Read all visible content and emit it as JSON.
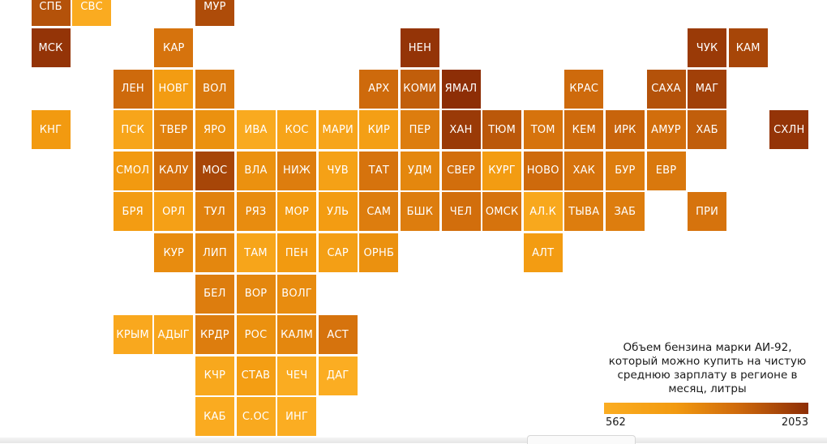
{
  "map": {
    "regions": [
      {
        "label": "СПБ",
        "value": 1750
      },
      {
        "label": "СВС",
        "value": 620
      },
      {
        "label": "МУР",
        "value": 1800
      },
      {
        "label": "МСК",
        "value": 2000
      },
      {
        "label": "КАР",
        "value": 1450
      },
      {
        "label": "НЕН",
        "value": 2000
      },
      {
        "label": "ЧУК",
        "value": 1950
      },
      {
        "label": "КАМ",
        "value": 1850
      },
      {
        "label": "ЛЕН",
        "value": 1550
      },
      {
        "label": "НОВГ",
        "value": 1000
      },
      {
        "label": "ВОЛ",
        "value": 1400
      },
      {
        "label": "АРХ",
        "value": 1550
      },
      {
        "label": "КОМИ",
        "value": 1650
      },
      {
        "label": "ЯМАЛ",
        "value": 2053
      },
      {
        "label": "КРАС",
        "value": 1550
      },
      {
        "label": "САХА",
        "value": 1750
      },
      {
        "label": "МАГ",
        "value": 1900
      },
      {
        "label": "КНГ",
        "value": 1050
      },
      {
        "label": "ПСК",
        "value": 780
      },
      {
        "label": "ТВЕР",
        "value": 1300
      },
      {
        "label": "ЯРО",
        "value": 1150
      },
      {
        "label": "ИВА",
        "value": 650
      },
      {
        "label": "КОС",
        "value": 800
      },
      {
        "label": "МАРИ",
        "value": 760
      },
      {
        "label": "КИР",
        "value": 920
      },
      {
        "label": "ПЕР",
        "value": 1350
      },
      {
        "label": "ХАН",
        "value": 1950
      },
      {
        "label": "ТЮМ",
        "value": 1700
      },
      {
        "label": "ТОМ",
        "value": 1450
      },
      {
        "label": "КЕМ",
        "value": 1550
      },
      {
        "label": "ИРК",
        "value": 1600
      },
      {
        "label": "АМУР",
        "value": 1500
      },
      {
        "label": "ХАБ",
        "value": 1650
      },
      {
        "label": "СХЛН",
        "value": 2000
      },
      {
        "label": "СМОЛ",
        "value": 1050
      },
      {
        "label": "КАЛУ",
        "value": 1500
      },
      {
        "label": "МОС",
        "value": 1850
      },
      {
        "label": "ВЛА",
        "value": 1150
      },
      {
        "label": "НИЖ",
        "value": 1350
      },
      {
        "label": "ЧУВ",
        "value": 880
      },
      {
        "label": "ТАТ",
        "value": 1450
      },
      {
        "label": "УДМ",
        "value": 1250
      },
      {
        "label": "СВЕР",
        "value": 1500
      },
      {
        "label": "КУРГ",
        "value": 1000
      },
      {
        "label": "НОВО",
        "value": 1550
      },
      {
        "label": "ХАК",
        "value": 1450
      },
      {
        "label": "БУР",
        "value": 1350
      },
      {
        "label": "ЕВР",
        "value": 1400
      },
      {
        "label": "БРЯ",
        "value": 1000
      },
      {
        "label": "ОРЛ",
        "value": 900
      },
      {
        "label": "ТУЛ",
        "value": 1300
      },
      {
        "label": "РЯЗ",
        "value": 1200
      },
      {
        "label": "МОР",
        "value": 1050
      },
      {
        "label": "УЛЬ",
        "value": 1000
      },
      {
        "label": "САМ",
        "value": 1350
      },
      {
        "label": "БШК",
        "value": 1350
      },
      {
        "label": "ЧЕЛ",
        "value": 1500
      },
      {
        "label": "ОМСК",
        "value": 1450
      },
      {
        "label": "АЛ.К",
        "value": 700
      },
      {
        "label": "ТЫВА",
        "value": 1350
      },
      {
        "label": "ЗАБ",
        "value": 1350
      },
      {
        "label": "ПРИ",
        "value": 1450
      },
      {
        "label": "КУР",
        "value": 1200
      },
      {
        "label": "ЛИП",
        "value": 1250
      },
      {
        "label": "ТАМ",
        "value": 780
      },
      {
        "label": "ПЕН",
        "value": 1050
      },
      {
        "label": "САР",
        "value": 920
      },
      {
        "label": "ОРНБ",
        "value": 1150
      },
      {
        "label": "АЛТ",
        "value": 1000
      },
      {
        "label": "БЕЛ",
        "value": 1350
      },
      {
        "label": "ВОР",
        "value": 1250
      },
      {
        "label": "ВОЛГ",
        "value": 1200
      },
      {
        "label": "КРЫМ",
        "value": 680
      },
      {
        "label": "АДЫГ",
        "value": 760
      },
      {
        "label": "КРДР",
        "value": 1350
      },
      {
        "label": "РОС",
        "value": 1150
      },
      {
        "label": "КАЛМ",
        "value": 1250
      },
      {
        "label": "АСТ",
        "value": 1450
      },
      {
        "label": "КЧР",
        "value": 700
      },
      {
        "label": "СТАВ",
        "value": 960
      },
      {
        "label": "ЧЕЧ",
        "value": 600
      },
      {
        "label": "ДАГ",
        "value": 562
      },
      {
        "label": "КАБ",
        "value": 620
      },
      {
        "label": "С.ОС",
        "value": 660
      },
      {
        "label": "ИНГ",
        "value": 570
      }
    ]
  },
  "legend": {
    "title": "Объем бензина марки АИ-92, который можно купить на чистую среднюю зарплату в регионе в месяц, литры",
    "min_label": "562",
    "max_label": "2053",
    "min": 562,
    "max": 2053
  },
  "colors": {
    "low": "#fbad22",
    "mid_low": "#f29a10",
    "mid_high": "#cf6a0c",
    "high": "#8d2e06"
  }
}
